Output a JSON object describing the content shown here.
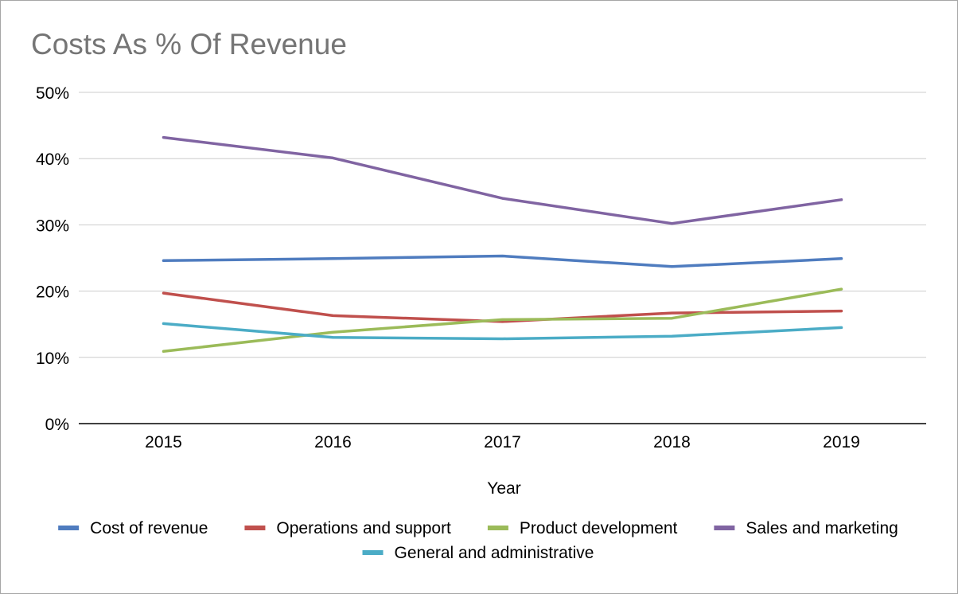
{
  "chart_data": {
    "type": "line",
    "title": "Costs As % Of Revenue",
    "xlabel": "Year",
    "ylabel": "",
    "categories": [
      "2015",
      "2016",
      "2017",
      "2018",
      "2019"
    ],
    "ylim": [
      0,
      50
    ],
    "yticks": [
      "0%",
      "10%",
      "20%",
      "30%",
      "40%",
      "50%"
    ],
    "grid": true,
    "legend_position": "bottom",
    "series": [
      {
        "name": "Cost of revenue",
        "color": "#4f7cbf",
        "values": [
          24.6,
          24.9,
          25.3,
          23.7,
          24.9
        ]
      },
      {
        "name": "Operations and support",
        "color": "#c0504d",
        "values": [
          19.7,
          16.3,
          15.4,
          16.7,
          17.0
        ]
      },
      {
        "name": "Product development",
        "color": "#9bbb59",
        "values": [
          10.9,
          13.8,
          15.7,
          15.9,
          20.3
        ]
      },
      {
        "name": "Sales and marketing",
        "color": "#8064a2",
        "values": [
          43.2,
          40.1,
          34.0,
          30.2,
          33.8
        ]
      },
      {
        "name": "General and administrative",
        "color": "#4bacc6",
        "values": [
          15.1,
          13.0,
          12.8,
          13.2,
          14.5
        ]
      }
    ]
  }
}
